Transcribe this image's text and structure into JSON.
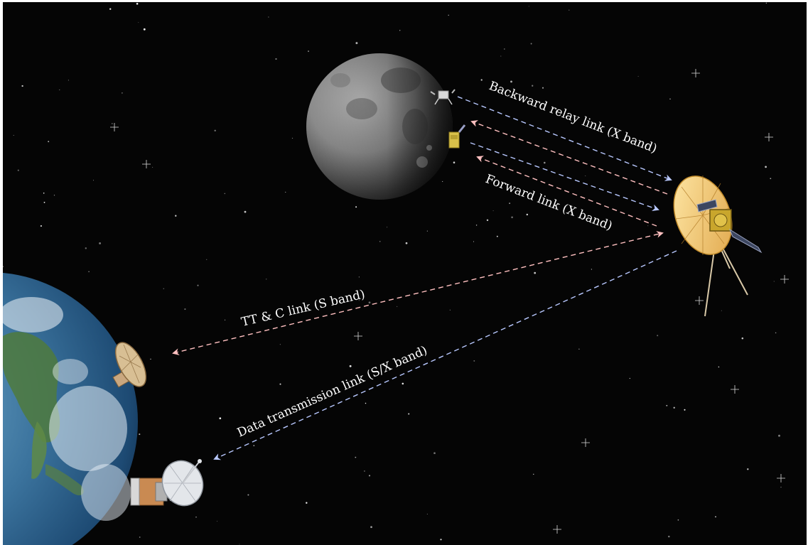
{
  "labels": {
    "backward_relay": "Backward relay link (X band)",
    "forward": "Forward link (X band)",
    "ttc": "TT & C link (S band)",
    "data_transmission": "Data transmission link (S/X band)"
  },
  "colors": {
    "space": "#050505",
    "link_blue": "#b8c8ff",
    "link_pink": "#ffc0c0",
    "text": "#ffffff"
  },
  "icons": [
    "moon",
    "lunar-lander",
    "lunar-rover",
    "relay-satellite",
    "earth",
    "ground-antenna-small",
    "ground-antenna-dish"
  ]
}
